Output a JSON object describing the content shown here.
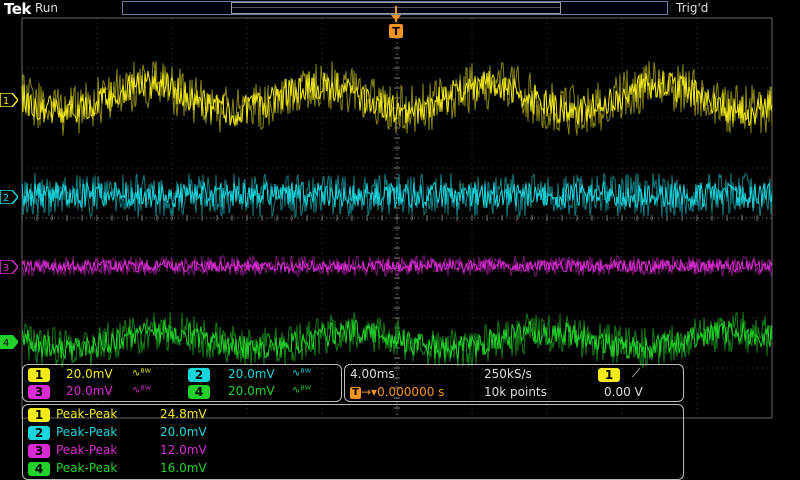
{
  "header": {
    "brand": "Tek",
    "acq_state": "Run",
    "trig_state": "Trig'd",
    "trigger_marker": "T"
  },
  "colors": {
    "ch1": "#f2ea19",
    "ch2": "#19d5dc",
    "ch3": "#d92bd3",
    "ch4": "#22d22a",
    "accent": "#f7941d"
  },
  "channels": [
    {
      "id": "1",
      "scale": "20.0mV",
      "bw_icon": "bandwidth-limit-icon"
    },
    {
      "id": "2",
      "scale": "20.0mV",
      "bw_icon": "bandwidth-limit-icon"
    },
    {
      "id": "3",
      "scale": "20.0mV",
      "bw_icon": "bandwidth-limit-icon"
    },
    {
      "id": "4",
      "scale": "20.0mV",
      "bw_icon": "bandwidth-limit-icon"
    }
  ],
  "horizontal": {
    "time_div": "4.00ms",
    "sample_rate": "250kS/s",
    "position": "0.000000 s",
    "record_length": "10k points"
  },
  "trigger": {
    "source": "1",
    "slope_icon": "rising-edge-icon",
    "level": "0.00 V"
  },
  "measurements": [
    {
      "ch": "1",
      "label": "Peak-Peak",
      "value": "24.8mV"
    },
    {
      "ch": "2",
      "label": "Peak-Peak",
      "value": "20.0mV"
    },
    {
      "ch": "3",
      "label": "Peak-Peak",
      "value": "12.0mV"
    },
    {
      "ch": "4",
      "label": "Peak-Peak",
      "value": "16.0mV"
    }
  ]
}
